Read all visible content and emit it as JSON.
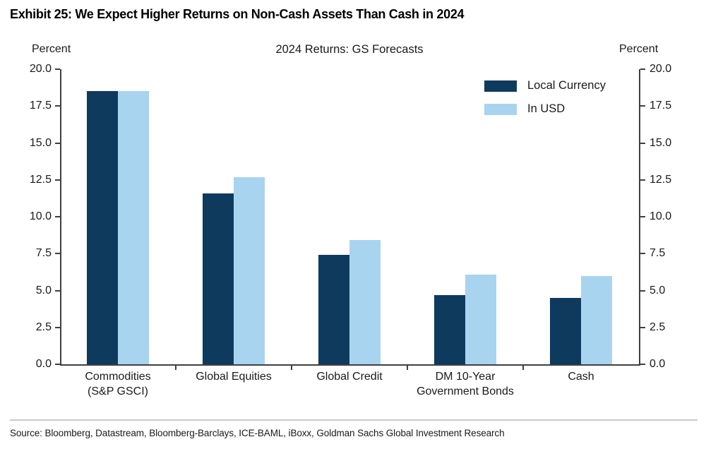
{
  "exhibit_title": "Exhibit 25: We Expect Higher Returns on Non-Cash Assets Than Cash in 2024",
  "source_line": "Source: Bloomberg, Datastream, Bloomberg-Barclays, ICE-BAML, iBoxx, Goldman Sachs Global Investment Research",
  "chart_data": {
    "type": "bar",
    "title": "2024 Returns: GS Forecasts",
    "left_axis_unit": "Percent",
    "right_axis_unit": "Percent",
    "categories": [
      [
        "Commodities",
        "(S&P GSCI)"
      ],
      [
        "Global Equities"
      ],
      [
        "Global Credit"
      ],
      [
        "DM 10-Year",
        "Government Bonds"
      ],
      [
        "Cash"
      ]
    ],
    "series": [
      {
        "name": "Local Currency",
        "color": "#0e3a5e",
        "values": [
          18.5,
          11.6,
          7.4,
          4.7,
          4.5
        ]
      },
      {
        "name": "In USD",
        "color": "#a8d4ef",
        "values": [
          18.5,
          12.7,
          8.4,
          6.1,
          6.0
        ]
      }
    ],
    "ylim": [
      0,
      20
    ],
    "yticks": [
      0,
      2.5,
      5,
      7.5,
      10,
      12.5,
      15,
      17.5,
      20
    ],
    "ytick_decimals": 1,
    "legend_position": "top-right",
    "grid": false,
    "axis_color": "#404040"
  }
}
